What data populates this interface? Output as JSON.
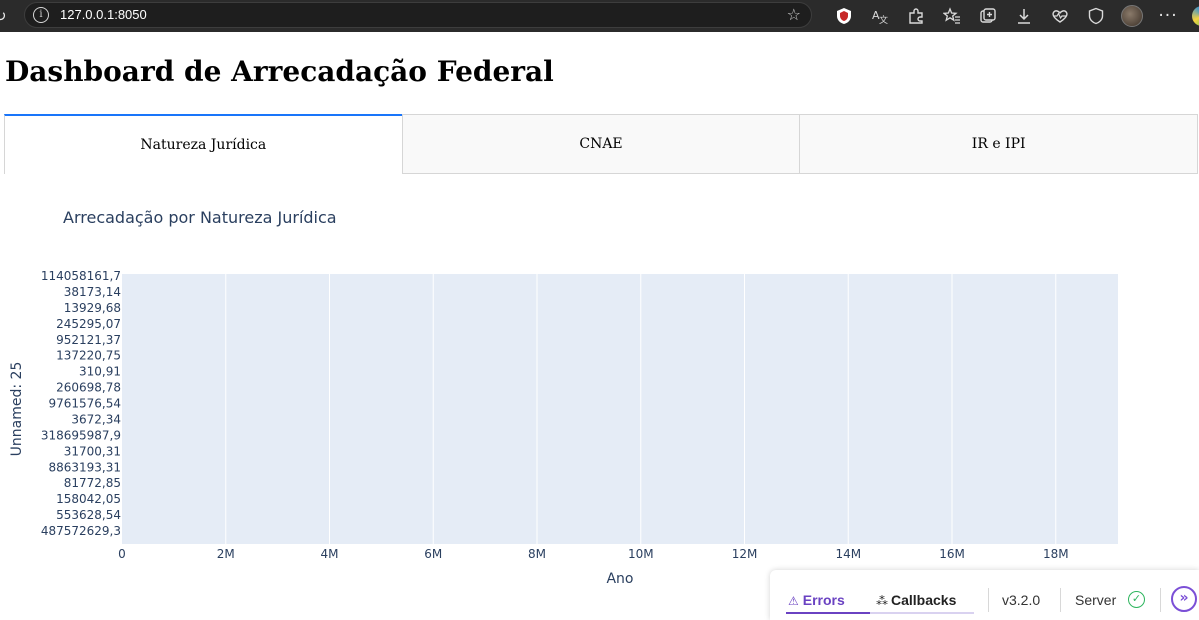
{
  "browser": {
    "url": "127.0.0.1:8050",
    "icons": [
      "reload-icon",
      "site-info-icon",
      "favorite-star-icon",
      "shield-extension-icon",
      "translate-icon",
      "extensions-icon",
      "favorites-icon",
      "collections-icon",
      "downloads-icon",
      "performance-icon",
      "browser-essentials-icon",
      "profile-avatar",
      "more-icon",
      "edge-copilot-icon"
    ]
  },
  "page": {
    "title": "Dashboard de Arrecadação Federal"
  },
  "tabs": [
    {
      "label": "Natureza Jurídica",
      "active": true
    },
    {
      "label": "CNAE",
      "active": false
    },
    {
      "label": "IR e IPI",
      "active": false
    }
  ],
  "chart_data": {
    "type": "bar",
    "title": "Arrecadação por Natureza Jurídica",
    "xlabel": "Ano",
    "ylabel": "Unnamed: 25",
    "categories": [
      "114058161,7",
      "38173,14",
      "13929,68",
      "245295,07",
      "952121,37",
      "137220,75",
      "310,91",
      "260698,78",
      "9761576,54",
      "3672,34",
      "318695987,9",
      "31700,31",
      "8863193,31",
      "81772,85",
      "158042,05",
      "553628,54",
      "487572629,3"
    ],
    "x_ticks": [
      "0",
      "2M",
      "4M",
      "6M",
      "8M",
      "10M",
      "12M",
      "14M",
      "16M",
      "18M"
    ],
    "x_tick_values": [
      0,
      2000000,
      4000000,
      6000000,
      8000000,
      10000000,
      12000000,
      14000000,
      16000000,
      18000000
    ],
    "xlim": [
      0,
      19200000
    ],
    "grid": true,
    "plot_bg": "#e5ecf6",
    "text_color": "#2a3f5f"
  },
  "dash_debug": {
    "errors_label": "Errors",
    "callbacks_label": "Callbacks",
    "version": "v3.2.0",
    "server_label": "Server",
    "accent": "#6a42c2",
    "ok_color": "#2eb55e"
  }
}
